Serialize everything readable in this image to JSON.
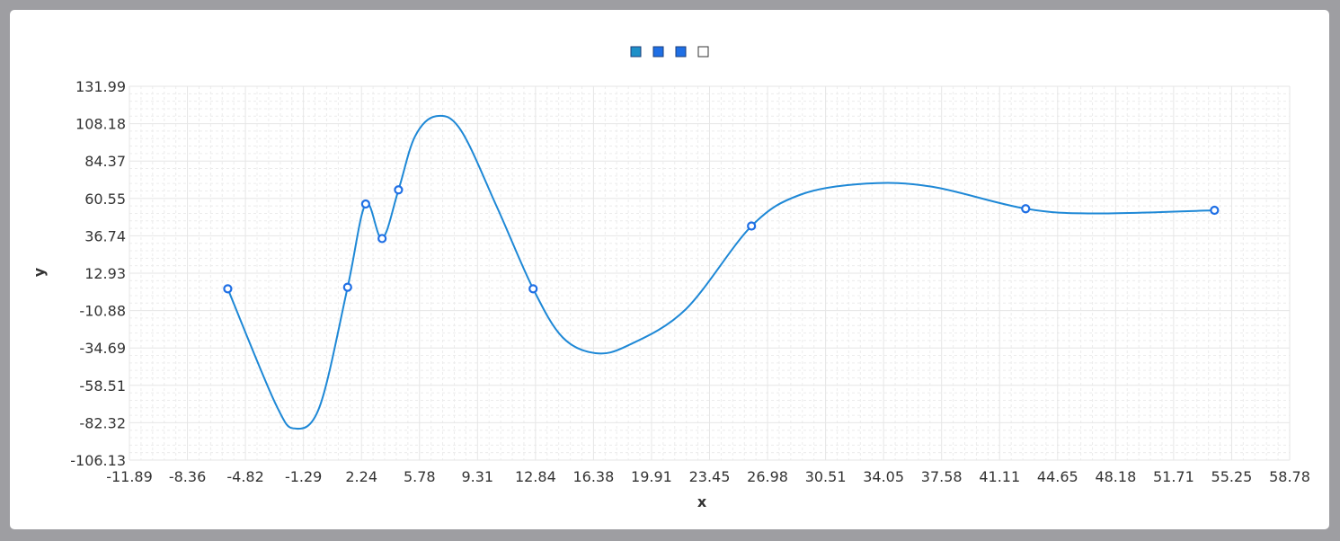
{
  "chart_data": {
    "type": "line",
    "title": "",
    "xlabel": "x",
    "ylabel": "y",
    "xlim": [
      -11.89,
      58.78
    ],
    "ylim": [
      -106.13,
      131.99
    ],
    "x_ticks": [
      "-11.89",
      "-8.36",
      "-4.82",
      "-1.29",
      "2.24",
      "5.78",
      "9.31",
      "12.84",
      "16.38",
      "19.91",
      "23.45",
      "26.98",
      "30.51",
      "34.05",
      "37.58",
      "41.11",
      "44.65",
      "48.18",
      "51.71",
      "55.25",
      "58.78"
    ],
    "y_ticks": [
      "131.99",
      "108.18",
      "84.37",
      "60.55",
      "36.74",
      "12.93",
      "-10.88",
      "-34.69",
      "-58.51",
      "-82.32",
      "-106.13"
    ],
    "grid": true,
    "smooth": true,
    "legend": {
      "position": "top-center",
      "swatches": [
        {
          "color": "#1e90c8",
          "filled": true
        },
        {
          "color": "#1f6fe5",
          "filled": true
        },
        {
          "color": "#1f6fe5",
          "filled": true
        },
        {
          "color": "#ffffff",
          "filled": false
        }
      ]
    },
    "series": [
      {
        "name": "",
        "color": "#1e88d6",
        "marker_color": "#1f6fe5",
        "points": [
          {
            "x": -5.9,
            "y": 3.0
          },
          {
            "x": 1.4,
            "y": 4.0
          },
          {
            "x": 2.5,
            "y": 57.0
          },
          {
            "x": 3.5,
            "y": 35.0
          },
          {
            "x": 4.5,
            "y": 66.0
          },
          {
            "x": 12.7,
            "y": 3.0
          },
          {
            "x": 26.0,
            "y": 43.0
          },
          {
            "x": 42.7,
            "y": 54.0
          },
          {
            "x": 54.2,
            "y": 53.0
          }
        ],
        "curve": [
          [
            -5.9,
            3.0
          ],
          [
            -3.0,
            -70.0
          ],
          [
            -1.8,
            -86.0
          ],
          [
            -0.3,
            -72.0
          ],
          [
            1.4,
            4.0
          ],
          [
            2.5,
            57.0
          ],
          [
            3.5,
            35.0
          ],
          [
            4.5,
            66.0
          ],
          [
            5.5,
            100.0
          ],
          [
            6.8,
            113.0
          ],
          [
            8.3,
            104.0
          ],
          [
            10.5,
            55.0
          ],
          [
            12.7,
            3.0
          ],
          [
            14.5,
            -28.0
          ],
          [
            16.5,
            -38.0
          ],
          [
            18.5,
            -33.0
          ],
          [
            22.0,
            -10.0
          ],
          [
            26.0,
            43.0
          ],
          [
            29.0,
            63.0
          ],
          [
            33.0,
            70.0
          ],
          [
            37.0,
            68.0
          ],
          [
            42.7,
            54.0
          ],
          [
            47.0,
            51.0
          ],
          [
            54.2,
            53.0
          ]
        ]
      }
    ]
  }
}
